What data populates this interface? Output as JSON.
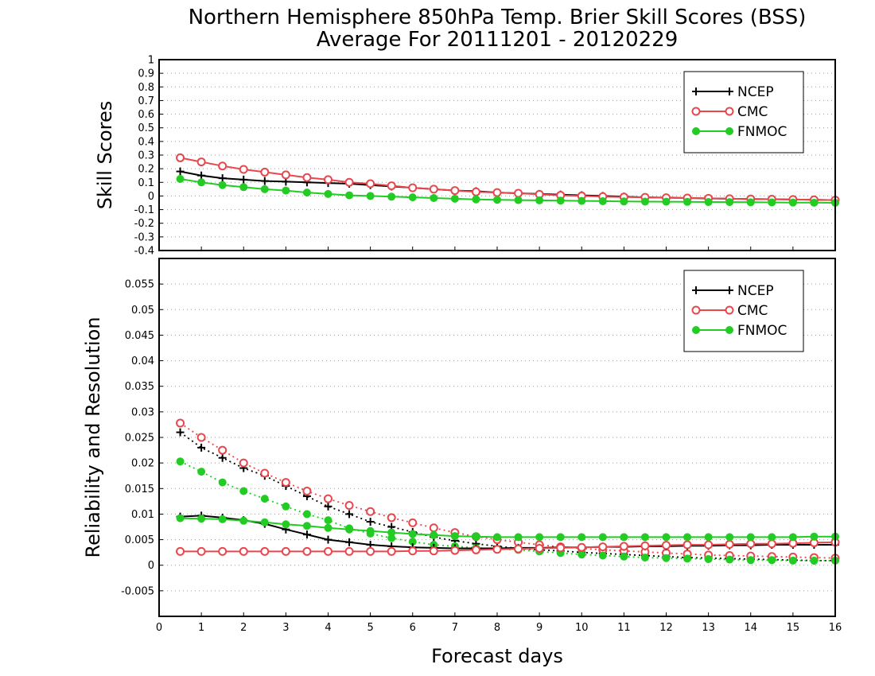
{
  "chart_data": {
    "type": "line",
    "title": "Northern Hemisphere 850hPa Temp. Brier Skill Scores (BSS)",
    "subtitle": "Average For 20111201 - 20120229",
    "xlabel": "Forecast days",
    "x_ticks": [
      "0",
      "1",
      "2",
      "3",
      "4",
      "5",
      "6",
      "7",
      "8",
      "9",
      "10",
      "11",
      "12",
      "13",
      "14",
      "15",
      "16"
    ],
    "xlim": [
      0,
      16
    ],
    "x": [
      0.5,
      1,
      1.5,
      2,
      2.5,
      3,
      3.5,
      4,
      4.5,
      5,
      5.5,
      6,
      6.5,
      7,
      7.5,
      8,
      8.5,
      9,
      9.5,
      10,
      10.5,
      11,
      11.5,
      12,
      12.5,
      13,
      13.5,
      14,
      14.5,
      15,
      15.5,
      16
    ],
    "colors": {
      "NCEP": "#000000",
      "CMC": "#e8474d",
      "FNMOC": "#22cc22"
    },
    "panels": [
      {
        "ylabel": "Skill Scores",
        "ylim": [
          -0.4,
          1
        ],
        "y_ticks": [
          "-0.4",
          "-0.3",
          "-0.2",
          "-0.1",
          "0",
          "0.1",
          "0.2",
          "0.3",
          "0.4",
          "0.5",
          "0.6",
          "0.7",
          "0.8",
          "0.9",
          "1"
        ],
        "grid": true,
        "legend": "top-right",
        "legend_entries": [
          "NCEP",
          "CMC",
          "FNMOC"
        ],
        "series": [
          {
            "name": "NCEP",
            "style": "solid",
            "marker": "plus",
            "values": [
              0.18,
              0.15,
              0.13,
              0.12,
              0.11,
              0.105,
              0.1,
              0.095,
              0.09,
              0.08,
              0.07,
              0.06,
              0.05,
              0.04,
              0.035,
              0.025,
              0.02,
              0.015,
              0.01,
              0.005,
              0.0,
              -0.005,
              -0.01,
              -0.012,
              -0.015,
              -0.018,
              -0.02,
              -0.022,
              -0.024,
              -0.026,
              -0.028,
              -0.03
            ]
          },
          {
            "name": "CMC",
            "style": "solid",
            "marker": "open-circle",
            "values": [
              0.28,
              0.25,
              0.22,
              0.195,
              0.175,
              0.155,
              0.135,
              0.12,
              0.1,
              0.09,
              0.075,
              0.06,
              0.05,
              0.04,
              0.03,
              0.025,
              0.02,
              0.012,
              0.005,
              0.0,
              -0.005,
              -0.008,
              -0.01,
              -0.013,
              -0.015,
              -0.017,
              -0.02,
              -0.022,
              -0.024,
              -0.026,
              -0.028,
              -0.03
            ]
          },
          {
            "name": "FNMOC",
            "style": "solid",
            "marker": "filled-circle",
            "values": [
              0.125,
              0.1,
              0.08,
              0.065,
              0.05,
              0.04,
              0.025,
              0.015,
              0.005,
              0.0,
              -0.005,
              -0.01,
              -0.015,
              -0.02,
              -0.025,
              -0.028,
              -0.03,
              -0.032,
              -0.034,
              -0.036,
              -0.038,
              -0.04,
              -0.041,
              -0.042,
              -0.043,
              -0.044,
              -0.045,
              -0.046,
              -0.047,
              -0.048,
              -0.049,
              -0.05
            ]
          }
        ]
      },
      {
        "ylabel": "Reliability and Resolution",
        "ylim": [
          -0.01,
          0.06
        ],
        "y_ticks": [
          "-0.005",
          "0",
          "0.005",
          "0.01",
          "0.015",
          "0.02",
          "0.025",
          "0.03",
          "0.035",
          "0.04",
          "0.045",
          "0.05",
          "0.055"
        ],
        "grid": true,
        "legend": "top-right",
        "legend_entries": [
          "NCEP",
          "CMC",
          "FNMOC"
        ],
        "series": [
          {
            "name": "NCEP",
            "style": "dotted",
            "marker": "plus",
            "values": [
              0.026,
              0.023,
              0.021,
              0.019,
              0.0175,
              0.0155,
              0.0135,
              0.0115,
              0.01,
              0.0085,
              0.0075,
              0.0065,
              0.0055,
              0.0048,
              0.0042,
              0.0037,
              0.0033,
              0.003,
              0.0028,
              0.0025,
              0.0023,
              0.0021,
              0.0019,
              0.0017,
              0.0015,
              0.0014,
              0.0013,
              0.0012,
              0.0011,
              0.001,
              0.0009,
              0.0009
            ]
          },
          {
            "name": "CMC",
            "style": "dotted",
            "marker": "open-circle",
            "values": [
              0.0278,
              0.025,
              0.0225,
              0.02,
              0.018,
              0.0162,
              0.0145,
              0.013,
              0.0117,
              0.0105,
              0.0093,
              0.0083,
              0.0073,
              0.0064,
              0.0056,
              0.005,
              0.0045,
              0.004,
              0.0036,
              0.0033,
              0.003,
              0.0028,
              0.0026,
              0.0024,
              0.0022,
              0.002,
              0.0019,
              0.0018,
              0.0017,
              0.0016,
              0.0015,
              0.0014
            ]
          },
          {
            "name": "FNMOC",
            "style": "dotted",
            "marker": "filled-circle",
            "values": [
              0.0203,
              0.0183,
              0.0162,
              0.0145,
              0.013,
              0.0115,
              0.01,
              0.0088,
              0.0072,
              0.0062,
              0.0053,
              0.0046,
              0.004,
              0.0037,
              0.0034,
              0.0032,
              0.003,
              0.0027,
              0.0024,
              0.0021,
              0.0019,
              0.0017,
              0.0015,
              0.0014,
              0.0013,
              0.0012,
              0.0011,
              0.001,
              0.001,
              0.0009,
              0.0009,
              0.0009
            ]
          },
          {
            "name": "NCEP",
            "style": "solid",
            "marker": "plus",
            "values": [
              0.0095,
              0.0097,
              0.0093,
              0.0088,
              0.0081,
              0.007,
              0.006,
              0.005,
              0.0045,
              0.004,
              0.0037,
              0.0035,
              0.0034,
              0.0033,
              0.0033,
              0.0033,
              0.0034,
              0.0034,
              0.0035,
              0.0035,
              0.0036,
              0.0036,
              0.0037,
              0.0037,
              0.0038,
              0.0038,
              0.0039,
              0.0039,
              0.004,
              0.004,
              0.004,
              0.004
            ]
          },
          {
            "name": "CMC",
            "style": "solid",
            "marker": "open-circle",
            "values": [
              0.0027,
              0.0027,
              0.0027,
              0.0027,
              0.0027,
              0.0027,
              0.0027,
              0.0027,
              0.0027,
              0.0027,
              0.0027,
              0.0028,
              0.0028,
              0.0029,
              0.003,
              0.0031,
              0.0032,
              0.0033,
              0.0034,
              0.0035,
              0.0036,
              0.0037,
              0.0038,
              0.0039,
              0.004,
              0.004,
              0.0041,
              0.0042,
              0.0042,
              0.0043,
              0.0044,
              0.0045
            ]
          },
          {
            "name": "FNMOC",
            "style": "solid",
            "marker": "filled-circle",
            "values": [
              0.0092,
              0.0091,
              0.009,
              0.0087,
              0.0084,
              0.008,
              0.0077,
              0.0073,
              0.007,
              0.0067,
              0.0064,
              0.0061,
              0.0059,
              0.0057,
              0.0056,
              0.0055,
              0.0055,
              0.0055,
              0.0055,
              0.0055,
              0.0055,
              0.0055,
              0.0055,
              0.0055,
              0.0055,
              0.0055,
              0.0055,
              0.0055,
              0.0055,
              0.0055,
              0.0056,
              0.0056
            ]
          }
        ]
      }
    ]
  }
}
